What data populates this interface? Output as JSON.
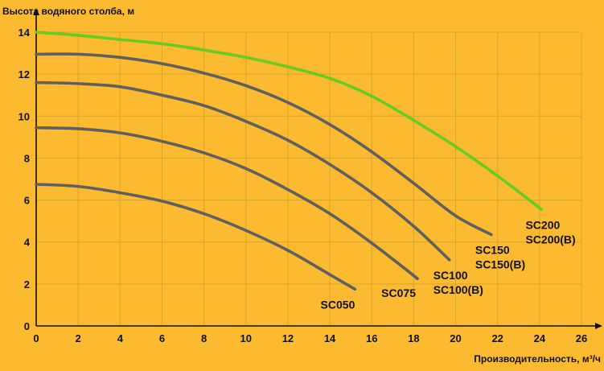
{
  "chart_data": {
    "type": "line",
    "title": "",
    "ylabel": "Высота водяного столба, м",
    "xlabel": "Производительность, м³/ч",
    "xlim": [
      0,
      26
    ],
    "ylim": [
      0,
      14
    ],
    "x_ticks": [
      0,
      2,
      4,
      6,
      8,
      10,
      12,
      14,
      16,
      18,
      20,
      22,
      24,
      26
    ],
    "y_ticks": [
      0,
      2,
      4,
      6,
      8,
      10,
      12,
      14
    ],
    "grid": true,
    "colors": {
      "background": "#FBBA2F",
      "grid": "#D9A52A",
      "axis": "#111111",
      "series_default": "#5F5F5F",
      "series_highlight": "#66CC22"
    },
    "series": [
      {
        "name_lines": [
          "SC050"
        ],
        "color": "#5F5F5F",
        "x": [
          0,
          2,
          4,
          6,
          8,
          10,
          12,
          14,
          15.2
        ],
        "y": [
          6.75,
          6.65,
          6.35,
          5.95,
          5.35,
          4.55,
          3.6,
          2.45,
          1.75
        ]
      },
      {
        "name_lines": [
          "SC075"
        ],
        "color": "#5F5F5F",
        "x": [
          0,
          2,
          4,
          6,
          8,
          10,
          12,
          14,
          16,
          18,
          18.1
        ],
        "y": [
          9.45,
          9.4,
          9.2,
          8.8,
          8.25,
          7.5,
          6.5,
          5.35,
          3.95,
          2.4,
          2.3
        ]
      },
      {
        "name_lines": [
          "SC100",
          "SC100(B)"
        ],
        "color": "#5F5F5F",
        "x": [
          0,
          2,
          4,
          6,
          8,
          10,
          12,
          14,
          16,
          18,
          19.7
        ],
        "y": [
          11.6,
          11.55,
          11.4,
          11.0,
          10.5,
          9.75,
          8.85,
          7.7,
          6.35,
          4.75,
          3.15
        ]
      },
      {
        "name_lines": [
          "SC150",
          "SC150(B)"
        ],
        "color": "#5F5F5F",
        "x": [
          0,
          2,
          4,
          6,
          8,
          10,
          12,
          14,
          16,
          18,
          20,
          21.7
        ],
        "y": [
          12.95,
          12.95,
          12.8,
          12.5,
          12.05,
          11.45,
          10.65,
          9.6,
          8.3,
          6.8,
          5.25,
          4.35
        ]
      },
      {
        "name_lines": [
          "SC200",
          "SC200(B)"
        ],
        "color": "#66CC22",
        "x": [
          0,
          2,
          4,
          6,
          8,
          10,
          12,
          14,
          16,
          18,
          20,
          22,
          24.1
        ],
        "y": [
          14.0,
          13.85,
          13.65,
          13.45,
          13.15,
          12.8,
          12.35,
          11.8,
          10.95,
          9.8,
          8.55,
          7.15,
          5.55
        ]
      }
    ]
  }
}
